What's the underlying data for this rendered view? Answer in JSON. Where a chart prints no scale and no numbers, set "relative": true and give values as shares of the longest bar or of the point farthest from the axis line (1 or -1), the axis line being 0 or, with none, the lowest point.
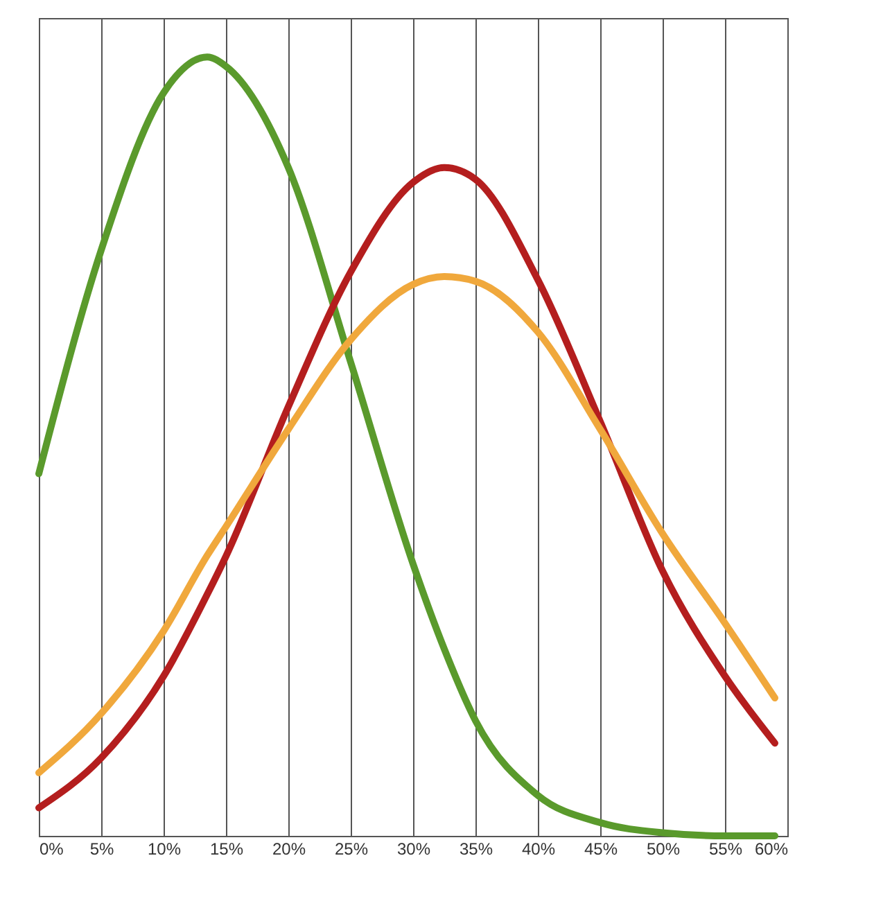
{
  "chart_data": {
    "type": "line",
    "relative": true,
    "grid": "x",
    "legend": false,
    "marker": "none",
    "line_style": "solid",
    "xlim": [
      0,
      60
    ],
    "xticks": [
      {
        "value": 0,
        "label": "0%"
      },
      {
        "value": 5,
        "label": "5%"
      },
      {
        "value": 10,
        "label": "10%"
      },
      {
        "value": 15,
        "label": "15%"
      },
      {
        "value": 20,
        "label": "20%"
      },
      {
        "value": 25,
        "label": "25%"
      },
      {
        "value": 30,
        "label": "30%"
      },
      {
        "value": 35,
        "label": "35%"
      },
      {
        "value": 40,
        "label": "40%"
      },
      {
        "value": 45,
        "label": "45%"
      },
      {
        "value": 50,
        "label": "50%"
      },
      {
        "value": 55,
        "label": "55%"
      },
      {
        "value": 60,
        "label": "60%"
      }
    ],
    "x": [
      0,
      5,
      10,
      13.5,
      15,
      20,
      25,
      30,
      32.5,
      35,
      40,
      45,
      50,
      55,
      59
    ],
    "series": [
      {
        "color": "#5a9a2c",
        "values": [
          0.465,
          0.752,
          0.954,
          1.0,
          0.988,
          0.858,
          0.608,
          0.349,
          0.24,
          0.148,
          0.052,
          0.017,
          0.004,
          0.0,
          0.0
        ]
      },
      {
        "color": "#b41e1e",
        "values": [
          0.036,
          0.1,
          0.205,
          0.31,
          0.359,
          0.551,
          0.724,
          0.839,
          0.858,
          0.843,
          0.714,
          0.532,
          0.34,
          0.205,
          0.119
        ]
      },
      {
        "color": "#f0a83c",
        "values": [
          0.081,
          0.157,
          0.263,
          0.36,
          0.397,
          0.522,
          0.637,
          0.708,
          0.718,
          0.712,
          0.647,
          0.522,
          0.388,
          0.273,
          0.177
        ]
      }
    ]
  }
}
